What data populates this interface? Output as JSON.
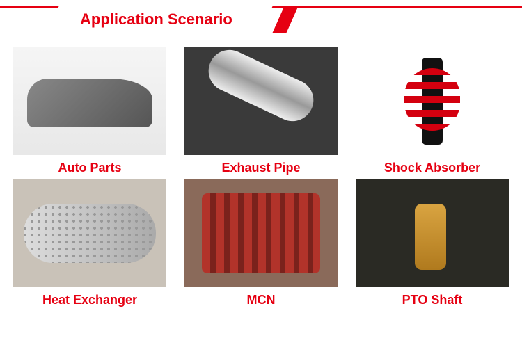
{
  "header": {
    "title": "Application Scenario",
    "accent_color": "#e60012",
    "background_color": "#ffffff"
  },
  "grid": {
    "columns": 3,
    "rows": 2,
    "caption_color": "#e60012",
    "caption_fontsize": 18,
    "thumb_width": 220,
    "thumb_height": 155,
    "items": [
      {
        "label": "Auto Parts",
        "placeholder": "ph-auto"
      },
      {
        "label": "Exhaust Pipe",
        "placeholder": "ph-pipe"
      },
      {
        "label": "Shock Absorber",
        "placeholder": "ph-shock"
      },
      {
        "label": "Heat Exchanger",
        "placeholder": "ph-heat"
      },
      {
        "label": "MCN",
        "placeholder": "ph-mcn"
      },
      {
        "label": "PTO Shaft",
        "placeholder": "ph-pto"
      }
    ]
  }
}
